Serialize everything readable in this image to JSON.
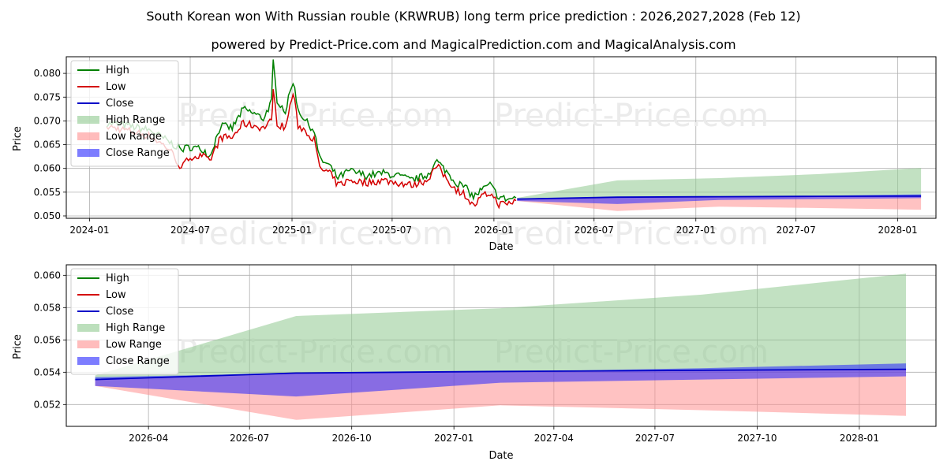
{
  "title_line1": "South Korean won With Russian rouble (KRWRUB) long term price prediction : 2026,2027,2028 (Feb 12)",
  "title_line2": "powered by Predict-Price.com and MagicalPrediction.com and MagicalAnalysis.com",
  "watermark": "Predict-Price.com",
  "colors": {
    "high": "#008000",
    "low": "#d40000",
    "close": "#0000c8",
    "high_range": "#8fc98f",
    "low_range": "#ff8f8f",
    "close_range": "#2626ff",
    "grid": "#b0b0b0"
  },
  "chart_data": [
    {
      "type": "line",
      "xlabel": "Date",
      "ylabel": "Price",
      "x_ticks": [
        "2024-01",
        "2024-07",
        "2025-01",
        "2025-07",
        "2026-01",
        "2026-07",
        "2027-01",
        "2027-07",
        "2028-01"
      ],
      "y_ticks": [
        "0.050",
        "0.055",
        "0.060",
        "0.065",
        "0.070",
        "0.075",
        "0.080"
      ],
      "xlim": [
        "2023-11-20",
        "2028-03-10"
      ],
      "ylim": [
        0.0495,
        0.0835
      ],
      "legend": [
        "High",
        "Low",
        "Close",
        "High Range",
        "Low Range",
        "Close Range"
      ],
      "legend_position": "top-left",
      "grid": true,
      "history_anchors": [
        [
          "2024-02-01",
          0.0695,
          0.0688
        ],
        [
          "2024-03-10",
          0.069,
          0.068
        ],
        [
          "2024-04-20",
          0.068,
          0.0668
        ],
        [
          "2024-05-25",
          0.0655,
          0.064
        ],
        [
          "2024-06-15",
          0.064,
          0.06
        ],
        [
          "2024-07-01",
          0.0645,
          0.0625
        ],
        [
          "2024-07-25",
          0.064,
          0.0625
        ],
        [
          "2024-08-05",
          0.0625,
          0.0615
        ],
        [
          "2024-08-25",
          0.069,
          0.0665
        ],
        [
          "2024-09-15",
          0.0685,
          0.0665
        ],
        [
          "2024-10-05",
          0.0725,
          0.0695
        ],
        [
          "2024-10-25",
          0.0715,
          0.069
        ],
        [
          "2024-11-10",
          0.0705,
          0.0685
        ],
        [
          "2024-11-25",
          0.074,
          0.07
        ],
        [
          "2024-11-28",
          0.0825,
          0.0765
        ],
        [
          "2024-12-05",
          0.0745,
          0.0695
        ],
        [
          "2024-12-20",
          0.072,
          0.0685
        ],
        [
          "2025-01-03",
          0.0785,
          0.076
        ],
        [
          "2025-01-12",
          0.0725,
          0.069
        ],
        [
          "2025-01-25",
          0.07,
          0.068
        ],
        [
          "2025-02-10",
          0.068,
          0.066
        ],
        [
          "2025-02-20",
          0.062,
          0.06
        ],
        [
          "2025-03-10",
          0.0605,
          0.059
        ],
        [
          "2025-03-25",
          0.058,
          0.0565
        ],
        [
          "2025-04-15",
          0.0595,
          0.0575
        ],
        [
          "2025-05-15",
          0.0585,
          0.057
        ],
        [
          "2025-06-15",
          0.059,
          0.0575
        ],
        [
          "2025-07-10",
          0.0585,
          0.057
        ],
        [
          "2025-08-05",
          0.0575,
          0.0565
        ],
        [
          "2025-09-01",
          0.0585,
          0.0575
        ],
        [
          "2025-09-20",
          0.0615,
          0.0605
        ],
        [
          "2025-10-10",
          0.059,
          0.0575
        ],
        [
          "2025-10-25",
          0.057,
          0.0555
        ],
        [
          "2025-11-10",
          0.056,
          0.0545
        ],
        [
          "2025-11-25",
          0.054,
          0.052
        ],
        [
          "2025-12-10",
          0.0555,
          0.054
        ],
        [
          "2025-12-25",
          0.0565,
          0.0548
        ],
        [
          "2026-01-10",
          0.054,
          0.0525
        ],
        [
          "2026-01-25",
          0.0535,
          0.0525
        ],
        [
          "2026-02-10",
          0.0538,
          0.0532
        ]
      ],
      "forecast": {
        "dates": [
          "2026-02-12",
          "2026-08-12",
          "2027-02-12",
          "2027-08-12",
          "2028-02-12"
        ],
        "close": [
          0.05355,
          0.05395,
          0.05405,
          0.05412,
          0.05418
        ],
        "high_upper": [
          0.0538,
          0.05748,
          0.05796,
          0.0588,
          0.0601
        ],
        "low_lower": [
          0.05315,
          0.05105,
          0.05195,
          0.05165,
          0.0513
        ],
        "close_upper": [
          0.0537,
          0.05393,
          0.05402,
          0.05425,
          0.05455
        ],
        "close_lower": [
          0.05315,
          0.0525,
          0.05335,
          0.05355,
          0.05375
        ]
      }
    },
    {
      "type": "line",
      "xlabel": "Date",
      "ylabel": "Price",
      "x_ticks": [
        "2026-04",
        "2026-07",
        "2026-10",
        "2027-01",
        "2027-04",
        "2027-07",
        "2027-10",
        "2028-01"
      ],
      "y_ticks": [
        "0.052",
        "0.054",
        "0.056",
        "0.058",
        "0.060"
      ],
      "xlim": [
        "2026-01-17",
        "2028-03-10"
      ],
      "ylim": [
        0.05065,
        0.06065
      ],
      "legend": [
        "High",
        "Low",
        "Close",
        "High Range",
        "Low Range",
        "Close Range"
      ],
      "legend_position": "top-left",
      "grid": true
    }
  ]
}
